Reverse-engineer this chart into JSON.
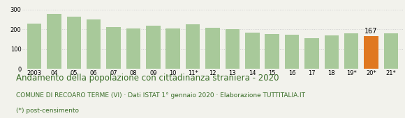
{
  "categories": [
    "2003",
    "04",
    "05",
    "06",
    "07",
    "08",
    "09",
    "10",
    "11*",
    "12",
    "13",
    "14",
    "15",
    "16",
    "17",
    "18",
    "19*",
    "20*",
    "21*"
  ],
  "values": [
    230,
    278,
    265,
    250,
    212,
    205,
    220,
    206,
    224,
    208,
    201,
    184,
    175,
    174,
    157,
    169,
    181,
    167,
    179
  ],
  "bar_colors": [
    "#a8c99a",
    "#a8c99a",
    "#a8c99a",
    "#a8c99a",
    "#a8c99a",
    "#a8c99a",
    "#a8c99a",
    "#a8c99a",
    "#a8c99a",
    "#a8c99a",
    "#a8c99a",
    "#a8c99a",
    "#a8c99a",
    "#a8c99a",
    "#a8c99a",
    "#a8c99a",
    "#a8c99a",
    "#e07820",
    "#a8c99a"
  ],
  "highlight_index": 17,
  "highlight_label": "167",
  "ylim": [
    0,
    330
  ],
  "yticks": [
    0,
    100,
    200,
    300
  ],
  "title": "Andamento della popolazione con cittadinanza straniera - 2020",
  "subtitle": "COMUNE DI RECOARO TERME (VI) · Dati ISTAT 1° gennaio 2020 · Elaborazione TUTTITALIA.IT",
  "footnote": "(*) post-censimento",
  "title_color": "#3a6e28",
  "subtitle_color": "#3a6e28",
  "footnote_color": "#3a6e28",
  "grid_color": "#d0d0d0",
  "background_color": "#f2f2ec",
  "title_fontsize": 8.5,
  "subtitle_fontsize": 6.5,
  "footnote_fontsize": 6.5,
  "tick_fontsize": 6.0,
  "label_fontsize": 7.0
}
